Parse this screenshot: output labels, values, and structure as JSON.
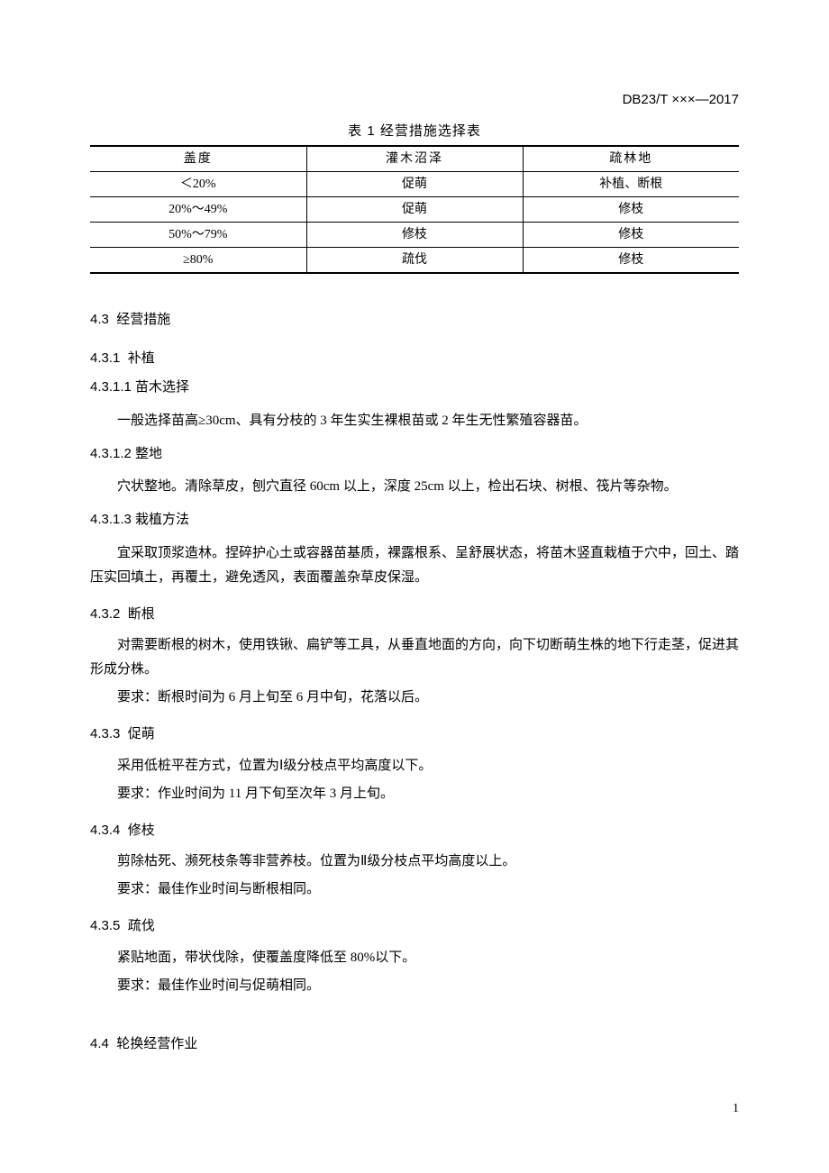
{
  "doc_code": "DB23/T ×××—2017",
  "table": {
    "caption": "表 1 经营措施选择表",
    "columns": [
      "盖度",
      "灌木沼泽",
      "疏林地"
    ],
    "rows": [
      [
        "＜20%",
        "促萌",
        "补植、断根"
      ],
      [
        "20%～49%",
        "促萌",
        "修枝"
      ],
      [
        "50%～79%",
        "修枝",
        "修枝"
      ],
      [
        "≥80%",
        "疏伐",
        "修枝"
      ]
    ]
  },
  "sections": {
    "s4_3": {
      "num": "4.3",
      "title": "经营措施"
    },
    "s4_3_1": {
      "num": "4.3.1",
      "title": "补植"
    },
    "s4_3_1_1": {
      "num": "4.3.1.1",
      "title": "苗木选择",
      "para": "一般选择苗高≥30cm、具有分枝的 3 年生实生裸根苗或 2 年生无性繁殖容器苗。"
    },
    "s4_3_1_2": {
      "num": "4.3.1.2",
      "title": "整地",
      "para": "穴状整地。清除草皮，刨穴直径 60cm 以上，深度 25cm 以上，检出石块、树根、筏片等杂物。"
    },
    "s4_3_1_3": {
      "num": "4.3.1.3",
      "title": "栽植方法",
      "para": "宜采取顶浆造林。捏碎护心土或容器苗基质，裸露根系、呈舒展状态，将苗木竖直栽植于穴中，回土、踏压实回填土，再覆土，避免透风，表面覆盖杂草皮保湿。"
    },
    "s4_3_2": {
      "num": "4.3.2",
      "title": "断根",
      "para1": "对需要断根的树木，使用铁锹、扁铲等工具，从垂直地面的方向，向下切断萌生株的地下行走茎，促进其形成分株。",
      "para2": "要求：断根时间为 6 月上旬至 6 月中旬，花落以后。"
    },
    "s4_3_3": {
      "num": "4.3.3",
      "title": "促萌",
      "para1": "采用低桩平茬方式，位置为Ⅰ级分枝点平均高度以下。",
      "para2": "要求：作业时间为 11 月下旬至次年 3 月上旬。"
    },
    "s4_3_4": {
      "num": "4.3.4",
      "title": "修枝",
      "para1": "剪除枯死、濒死枝条等非营养枝。位置为Ⅱ级分枝点平均高度以上。",
      "para2": "要求：最佳作业时间与断根相同。"
    },
    "s4_3_5": {
      "num": "4.3.5",
      "title": "疏伐",
      "para1": "紧贴地面，带状伐除，使覆盖度降低至 80%以下。",
      "para2": "要求：最佳作业时间与促萌相同。"
    },
    "s4_4": {
      "num": "4.4",
      "title": "轮换经营作业"
    }
  },
  "page_num": "1"
}
